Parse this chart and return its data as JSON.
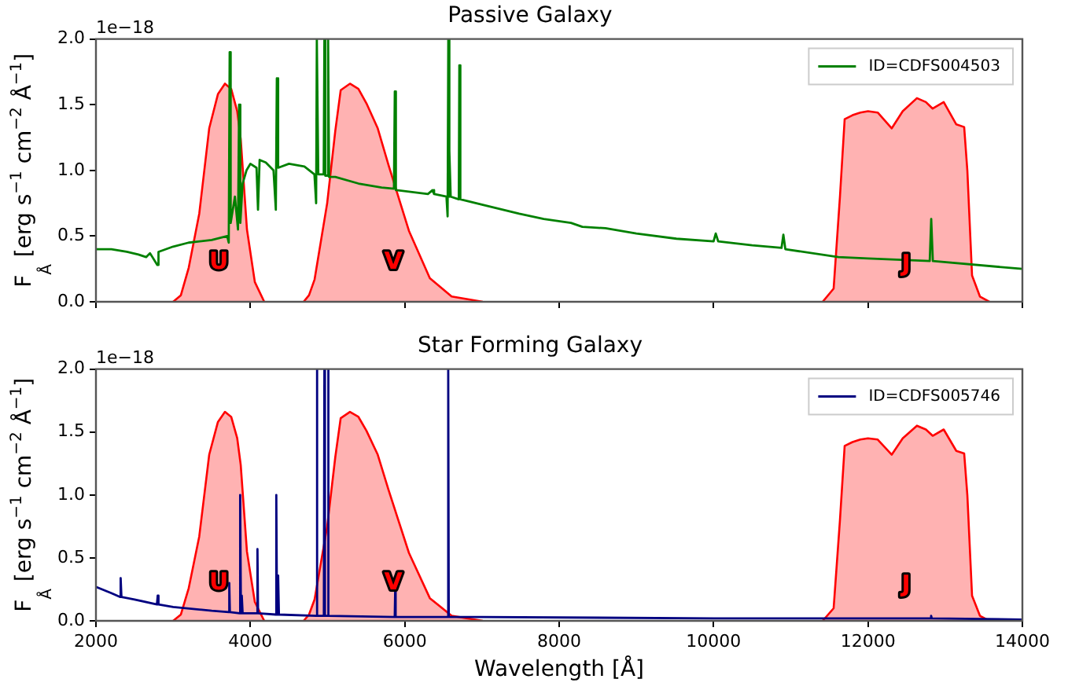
{
  "chart_data": [
    {
      "type": "line",
      "title": "Passive Galaxy",
      "ylabel": "F$_{Å}$ [erg s$^{−1}$ cm$^{−2}$ Å$^{−1}$]",
      "xlim": [
        2000,
        14000
      ],
      "xticks": [
        2000,
        4000,
        6000,
        8000,
        10000,
        12000,
        14000
      ],
      "ylim": [
        0,
        2
      ],
      "yticks": [
        {
          "value": 0,
          "label": "0.0"
        },
        {
          "value": 0.5,
          "label": "0.5"
        },
        {
          "value": 1,
          "label": "1.0"
        },
        {
          "value": 1.5,
          "label": "1.5"
        },
        {
          "value": 2,
          "label": "2.0"
        }
      ],
      "tick_labels": "y",
      "grid": false,
      "legend": "top right",
      "marker": "none",
      "annotations": [
        "1e−18"
      ],
      "series": [
        {
          "name": "ID=CDFS004503",
          "color": "#008000",
          "x": [
            2000,
            2200,
            2400,
            2550,
            2650,
            2700,
            2795,
            2810,
            3000,
            3200,
            3500,
            3700,
            3720,
            3732,
            3745,
            3800,
            3840,
            3854,
            3870,
            3900,
            3950,
            4000,
            4080,
            4099,
            4120,
            4200,
            4300,
            4330,
            4343,
            4360,
            4500,
            4700,
            4830,
            4852,
            4861,
            4880,
            4950,
            4959,
            4970,
            5000,
            5007,
            5020,
            5100,
            5400,
            5700,
            5860,
            5871,
            5885,
            6300,
            6360,
            6380,
            6540,
            6555,
            6564,
            6572,
            6583,
            6595,
            6700,
            6707,
            6720,
            7000,
            7481,
            7800,
            8153,
            8300,
            8600,
            9000,
            9519,
            10000,
            10028,
            10060,
            10500,
            10880,
            10904,
            10930,
            11617,
            12000,
            12800,
            12819,
            12840,
            14000
          ],
          "values": [
            0.4,
            0.4,
            0.38,
            0.36,
            0.34,
            0.37,
            0.28,
            0.38,
            0.42,
            0.45,
            0.47,
            0.5,
            0.45,
            1.9,
            0.6,
            0.8,
            0.55,
            1.5,
            0.6,
            0.9,
            1.0,
            1.05,
            1.02,
            0.7,
            1.08,
            1.06,
            1.0,
            0.7,
            1.7,
            1.02,
            1.05,
            1.03,
            0.97,
            0.75,
            2.0,
            0.97,
            0.97,
            2.0,
            0.96,
            0.96,
            2.0,
            0.95,
            0.95,
            0.9,
            0.87,
            0.86,
            1.6,
            0.85,
            0.82,
            0.85,
            0.82,
            0.8,
            0.65,
            2.0,
            0.8,
            1.15,
            0.8,
            0.78,
            1.8,
            0.78,
            0.74,
            0.67,
            0.63,
            0.6,
            0.57,
            0.56,
            0.52,
            0.48,
            0.46,
            0.52,
            0.46,
            0.43,
            0.41,
            0.51,
            0.4,
            0.34,
            0.33,
            0.31,
            0.63,
            0.31,
            0.25
          ]
        },
        {
          "type": "area",
          "name": "U",
          "color": "#ff0000",
          "x": [
            3000,
            3100,
            3202,
            3338,
            3467,
            3580,
            3671,
            3752,
            3830,
            3875,
            3956,
            4058,
            4180
          ],
          "values": [
            0,
            0.05,
            0.26,
            0.67,
            1.32,
            1.58,
            1.66,
            1.62,
            1.45,
            1.24,
            0.55,
            0.15,
            0
          ]
        },
        {
          "type": "area",
          "name": "V",
          "color": "#ff0000",
          "x": [
            4690,
            4760,
            4832,
            4995,
            5100,
            5170,
            5290,
            5400,
            5504,
            5650,
            5790,
            6054,
            6325,
            6607,
            7011
          ],
          "values": [
            0,
            0.05,
            0.17,
            0.75,
            1.3,
            1.61,
            1.66,
            1.62,
            1.51,
            1.32,
            1.04,
            0.54,
            0.18,
            0.04,
            0
          ]
        },
        {
          "type": "area",
          "name": "J",
          "color": "#ff0000",
          "x": [
            11413,
            11555,
            11637,
            11698,
            11800,
            11901,
            12000,
            12126,
            12308,
            12450,
            12634,
            12750,
            12838,
            12981,
            13144,
            13246,
            13287,
            13348,
            13450,
            13572
          ],
          "values": [
            0,
            0.1,
            0.8,
            1.39,
            1.42,
            1.44,
            1.45,
            1.44,
            1.32,
            1.45,
            1.55,
            1.52,
            1.47,
            1.52,
            1.35,
            1.33,
            1.0,
            0.2,
            0.04,
            0
          ]
        }
      ]
    },
    {
      "type": "line",
      "title": "Star Forming Galaxy",
      "xlabel": "Wavelength [Å]",
      "ylabel": "F$_{Å}$ [erg s$^{−1}$ cm$^{−2}$ Å$^{−1}$]",
      "xlim": [
        2000,
        14000
      ],
      "xticks": [
        2000,
        4000,
        6000,
        8000,
        10000,
        12000,
        14000
      ],
      "ylim": [
        0,
        2
      ],
      "yticks": [
        {
          "value": 0,
          "label": "0.0"
        },
        {
          "value": 0.5,
          "label": "0.5"
        },
        {
          "value": 1,
          "label": "1.0"
        },
        {
          "value": 1.5,
          "label": "1.5"
        },
        {
          "value": 2,
          "label": "2.0"
        }
      ],
      "grid": false,
      "legend": "top right",
      "marker": "none",
      "annotations": [
        "1e−18"
      ],
      "series": [
        {
          "name": "ID=CDFS005746",
          "color": "#000080",
          "x": [
            2000,
            2200,
            2310,
            2320,
            2330,
            2500,
            2790,
            2800,
            2810,
            3000,
            3500,
            3720,
            3727,
            3735,
            3860,
            3868,
            3878,
            3889,
            3900,
            4085,
            4092,
            4100,
            4330,
            4336,
            4345,
            4360,
            4370,
            4855,
            4861,
            4868,
            4952,
            4959,
            4966,
            5000,
            5007,
            5014,
            5870,
            5876,
            5882,
            6556,
            6563,
            6570,
            7000,
            10000,
            12810,
            12818,
            12826,
            14000
          ],
          "values": [
            0.27,
            0.22,
            0.19,
            0.34,
            0.19,
            0.17,
            0.13,
            0.2,
            0.13,
            0.11,
            0.08,
            0.07,
            0.3,
            0.07,
            0.06,
            1.0,
            0.06,
            0.2,
            0.06,
            0.06,
            0.57,
            0.06,
            0.05,
            1.0,
            0.05,
            0.36,
            0.05,
            0.04,
            2.0,
            0.04,
            0.04,
            2.0,
            0.04,
            0.04,
            2.0,
            0.04,
            0.03,
            0.24,
            0.03,
            0.03,
            2.0,
            0.03,
            0.03,
            0.02,
            0.02,
            0.04,
            0.02,
            0.01
          ]
        },
        {
          "type": "area",
          "name": "U",
          "color": "#ff0000",
          "x": [
            3000,
            3100,
            3202,
            3338,
            3467,
            3580,
            3671,
            3752,
            3830,
            3875,
            3956,
            4058,
            4180
          ],
          "values": [
            0,
            0.05,
            0.26,
            0.67,
            1.32,
            1.58,
            1.66,
            1.62,
            1.45,
            1.24,
            0.55,
            0.15,
            0
          ]
        },
        {
          "type": "area",
          "name": "V",
          "color": "#ff0000",
          "x": [
            4690,
            4760,
            4832,
            4995,
            5100,
            5170,
            5290,
            5400,
            5504,
            5650,
            5790,
            6054,
            6325,
            6607,
            7011
          ],
          "values": [
            0,
            0.05,
            0.17,
            0.75,
            1.3,
            1.61,
            1.66,
            1.62,
            1.51,
            1.32,
            1.04,
            0.54,
            0.18,
            0.04,
            0
          ]
        },
        {
          "type": "area",
          "name": "J",
          "color": "#ff0000",
          "x": [
            11413,
            11555,
            11637,
            11698,
            11800,
            11901,
            12000,
            12126,
            12308,
            12450,
            12634,
            12750,
            12838,
            12981,
            13144,
            13246,
            13287,
            13348,
            13450,
            13572
          ],
          "values": [
            0,
            0.1,
            0.8,
            1.39,
            1.42,
            1.44,
            1.45,
            1.44,
            1.32,
            1.45,
            1.55,
            1.52,
            1.47,
            1.52,
            1.35,
            1.33,
            1.0,
            0.2,
            0.04,
            0
          ]
        }
      ]
    }
  ]
}
